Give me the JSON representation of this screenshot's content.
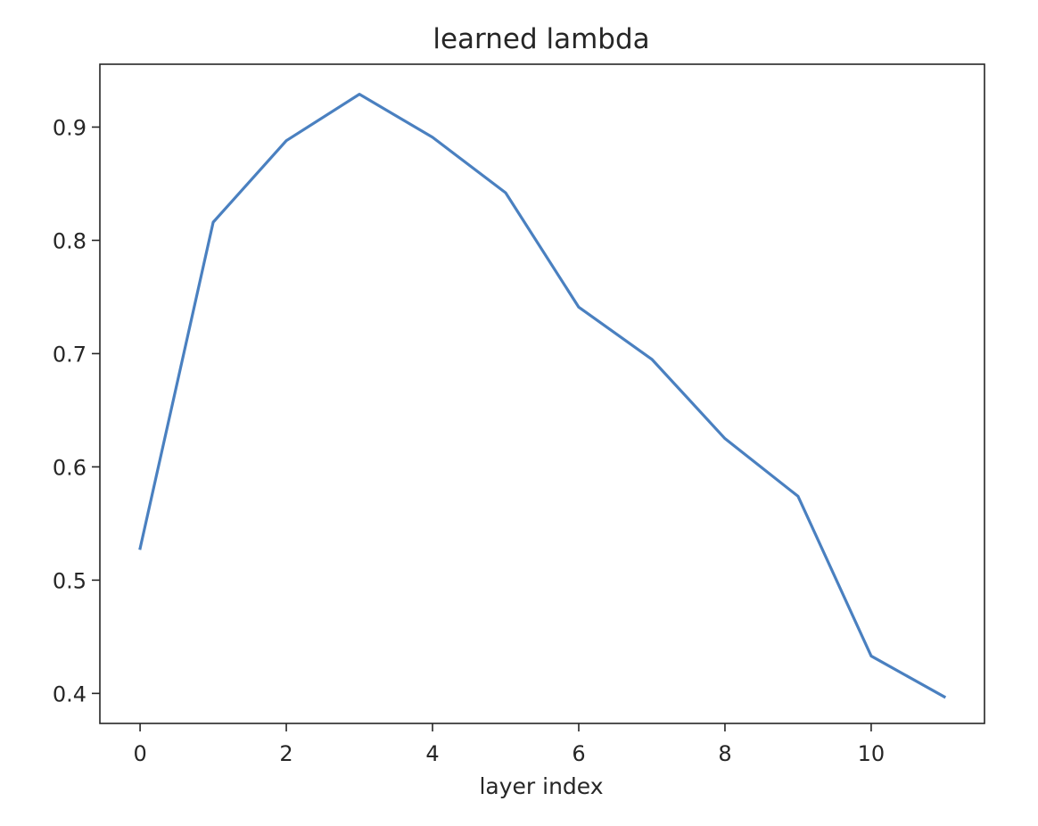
{
  "chart_data": {
    "type": "line",
    "title": "learned lambda",
    "xlabel": "layer index",
    "ylabel": "",
    "xlim": [
      -0.55,
      11.55
    ],
    "ylim": [
      0.3735,
      0.9555
    ],
    "x_ticks": [
      0,
      2,
      4,
      6,
      8,
      10
    ],
    "y_ticks": [
      0.4,
      0.5,
      0.6,
      0.7,
      0.8,
      0.9
    ],
    "grid": false,
    "legend": "none",
    "colors": {
      "line": "#4a80c0",
      "axes": "#262626"
    },
    "series": [
      {
        "x": [
          0,
          1,
          2,
          3,
          4,
          5,
          6,
          7,
          8,
          9,
          10,
          11
        ],
        "values": [
          0.528,
          0.816,
          0.888,
          0.929,
          0.891,
          0.842,
          0.741,
          0.695,
          0.625,
          0.574,
          0.433,
          0.397
        ]
      }
    ]
  }
}
